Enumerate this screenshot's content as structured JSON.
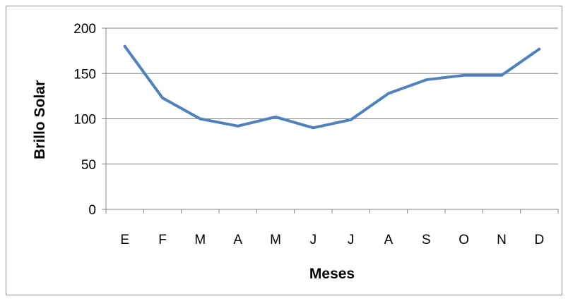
{
  "chart_data": {
    "type": "line",
    "title": "",
    "xlabel": "Meses",
    "ylabel": "Brillo Solar",
    "categories": [
      "E",
      "F",
      "M",
      "A",
      "M",
      "J",
      "J",
      "A",
      "S",
      "O",
      "N",
      "D"
    ],
    "series": [
      {
        "values": [
          180,
          123,
          100,
          92,
          102,
          90,
          99,
          128,
          143,
          148,
          148,
          177
        ],
        "color": "#4f81bd"
      }
    ],
    "ylim": [
      0,
      200
    ],
    "yticks": [
      0,
      50,
      100,
      150,
      200
    ],
    "grid": true,
    "legend": "none"
  }
}
